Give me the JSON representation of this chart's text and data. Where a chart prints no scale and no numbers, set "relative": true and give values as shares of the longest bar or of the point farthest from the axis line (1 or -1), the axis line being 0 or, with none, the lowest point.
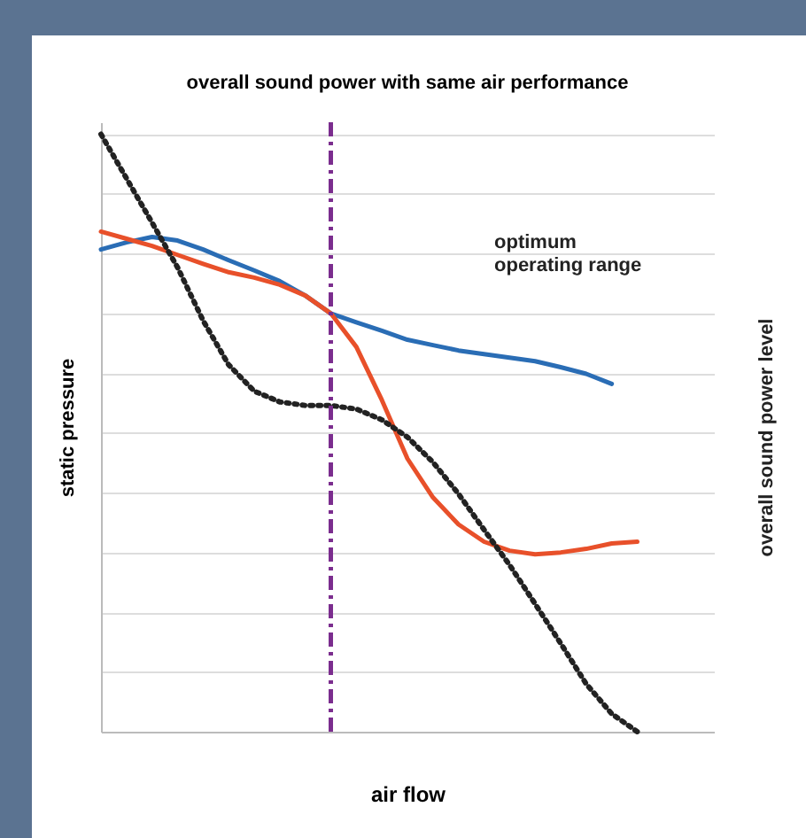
{
  "chart_data": {
    "type": "line",
    "title": "overall sound power with same air performance",
    "xlabel": "air flow",
    "ylabel": "static pressure",
    "y2label": "overall sound power level",
    "relative": true,
    "grid": "y",
    "annotations": [
      "optimum operating range"
    ],
    "categories": [
      null,
      null,
      null,
      null,
      null,
      null,
      null,
      null,
      null,
      null,
      null,
      null,
      null,
      null,
      null,
      null,
      null,
      null,
      null,
      null,
      null,
      null,
      null,
      null,
      null
    ],
    "series": [
      {
        "color": "#2a6db5",
        "line_style": "solid",
        "values": [
          0.807,
          0.819,
          0.828,
          0.822,
          0.807,
          0.789,
          0.772,
          0.754,
          0.73,
          0.7,
          0.685,
          0.671,
          0.656,
          0.647,
          0.638,
          0.632,
          0.626,
          0.62,
          0.61,
          0.599,
          0.582,
          null,
          null,
          null,
          null
        ]
      },
      {
        "color": "#e8502a",
        "line_style": "solid",
        "values": [
          0.837,
          0.825,
          0.813,
          0.798,
          0.783,
          0.769,
          0.76,
          0.748,
          0.73,
          0.7,
          0.644,
          0.555,
          0.457,
          0.392,
          0.347,
          0.318,
          0.303,
          0.297,
          0.3,
          0.306,
          0.315,
          0.318,
          null,
          null,
          null
        ]
      },
      {
        "color": "#222222",
        "line_style": "dotted",
        "values": [
          1,
          0.926,
          0.852,
          0.777,
          0.688,
          0.614,
          0.57,
          0.552,
          0.546,
          0.546,
          0.54,
          0.522,
          0.493,
          0.451,
          0.398,
          0.338,
          0.279,
          0.214,
          0.148,
          0.08,
          0.03,
          0,
          null,
          null,
          null
        ]
      }
    ]
  }
}
